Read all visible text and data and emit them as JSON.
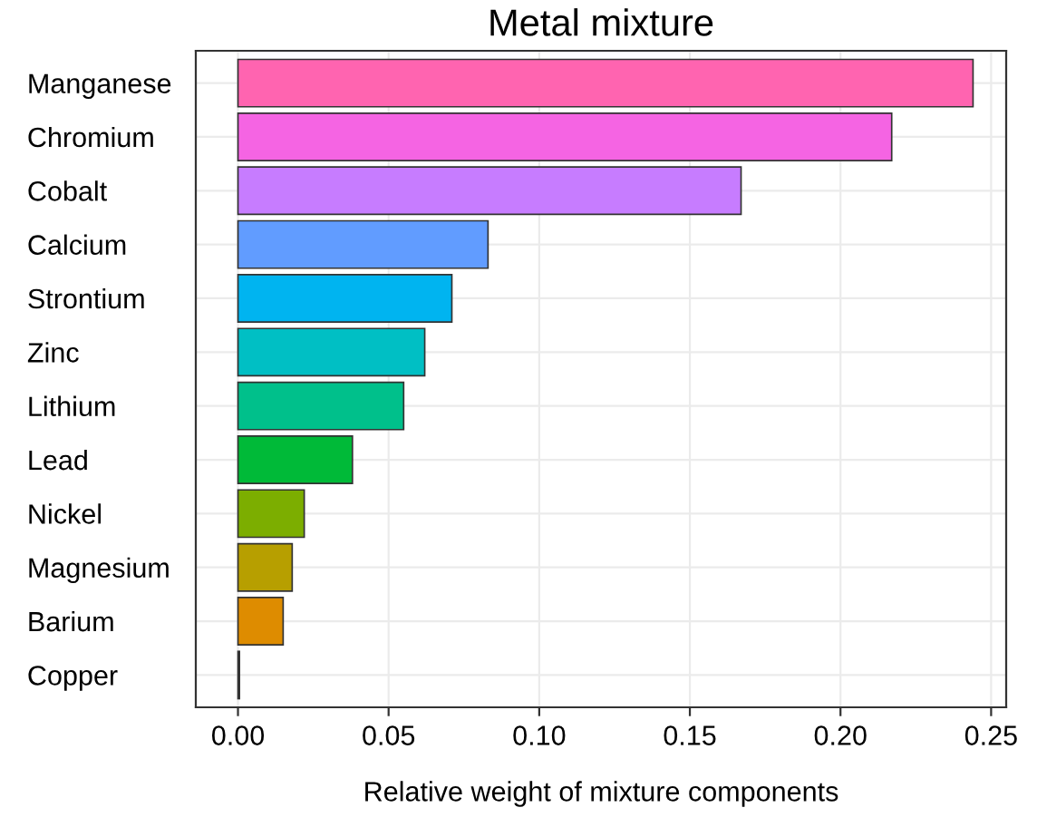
{
  "chart_data": {
    "type": "bar",
    "orientation": "horizontal",
    "title": "Metal mixture",
    "xlabel": "Relative weight of mixture components",
    "categories": [
      "Manganese",
      "Chromium",
      "Cobalt",
      "Calcium",
      "Strontium",
      "Zinc",
      "Lithium",
      "Lead",
      "Nickel",
      "Magnesium",
      "Barium",
      "Copper"
    ],
    "values": [
      0.244,
      0.217,
      0.167,
      0.083,
      0.071,
      0.062,
      0.055,
      0.038,
      0.022,
      0.018,
      0.015,
      0.0005
    ],
    "colors": [
      "#ff64b0",
      "#f564e3",
      "#c77cff",
      "#619cff",
      "#00b4f0",
      "#00bfc4",
      "#00c08b",
      "#00ba38",
      "#7cae00",
      "#b79f00",
      "#de8c00",
      "#f8766d"
    ],
    "xlim": [
      -0.014,
      0.255
    ],
    "xticks": [
      {
        "value": 0,
        "label": "0.00"
      },
      {
        "value": 0.05,
        "label": "0.05"
      },
      {
        "value": 0.1,
        "label": "0.10"
      },
      {
        "value": 0.15,
        "label": "0.15"
      },
      {
        "value": 0.2,
        "label": "0.20"
      },
      {
        "value": 0.25,
        "label": "0.25"
      }
    ],
    "grid": true
  }
}
